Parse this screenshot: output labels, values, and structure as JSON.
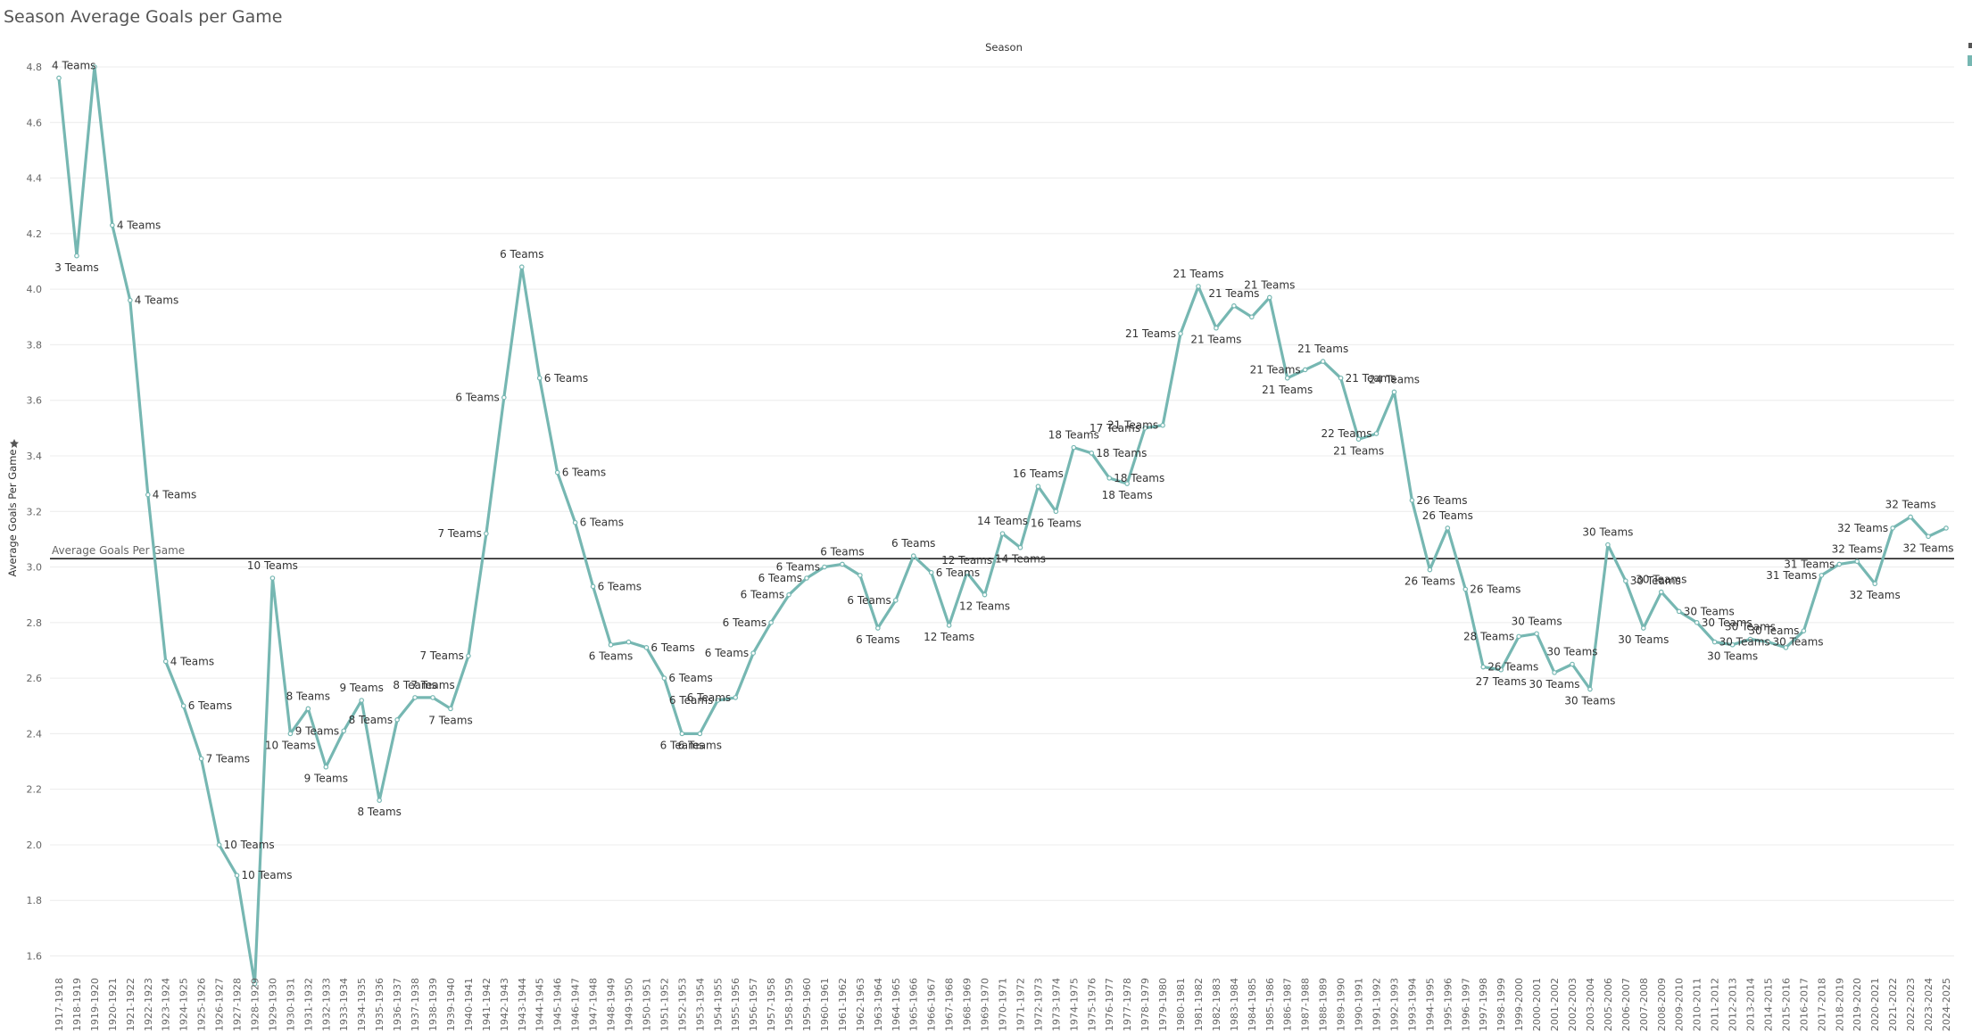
{
  "page": {
    "title": "Season Average Goals per Game"
  },
  "colors": {
    "line": "#76b7b2",
    "reference_line": "#222222",
    "gridline": "#ececec",
    "axis_text": "#666666"
  },
  "icons": {
    "y_axis_sort": "sort-icon"
  },
  "chart_data": {
    "type": "line",
    "title": "Season Average Goals per Game",
    "column_header": "Season",
    "xlabel": "",
    "ylabel": "Average Goals Per Game",
    "ylim": [
      1.5,
      4.85
    ],
    "yticks": [
      1.6,
      1.8,
      2.0,
      2.2,
      2.4,
      2.6,
      2.8,
      3.0,
      3.2,
      3.4,
      3.6,
      3.8,
      4.0,
      4.2,
      4.4,
      4.6,
      4.8
    ],
    "grid": true,
    "reference_line": {
      "label": "Average Goals Per Game",
      "value": 3.03
    },
    "categories": [
      "1917-1918",
      "1918-1919",
      "1919-1920",
      "1920-1921",
      "1921-1922",
      "1922-1923",
      "1923-1924",
      "1924-1925",
      "1925-1926",
      "1926-1927",
      "1927-1928",
      "1928-1929",
      "1929-1930",
      "1930-1931",
      "1931-1932",
      "1932-1933",
      "1933-1934",
      "1934-1935",
      "1935-1936",
      "1936-1937",
      "1937-1938",
      "1938-1939",
      "1939-1940",
      "1940-1941",
      "1941-1942",
      "1942-1943",
      "1943-1944",
      "1944-1945",
      "1945-1946",
      "1946-1947",
      "1947-1948",
      "1948-1949",
      "1949-1950",
      "1950-1951",
      "1951-1952",
      "1952-1953",
      "1953-1954",
      "1954-1955",
      "1955-1956",
      "1956-1957",
      "1957-1958",
      "1958-1959",
      "1959-1960",
      "1960-1961",
      "1961-1962",
      "1962-1963",
      "1963-1964",
      "1964-1965",
      "1965-1966",
      "1966-1967",
      "1967-1968",
      "1968-1969",
      "1969-1970",
      "1970-1971",
      "1971-1972",
      "1972-1973",
      "1973-1974",
      "1974-1975",
      "1975-1976",
      "1976-1977",
      "1977-1978",
      "1978-1979",
      "1979-1980",
      "1980-1981",
      "1981-1982",
      "1982-1983",
      "1983-1984",
      "1984-1985",
      "1985-1986",
      "1986-1987",
      "1987-1988",
      "1988-1989",
      "1989-1990",
      "1990-1991",
      "1991-1992",
      "1992-1993",
      "1993-1994",
      "1994-1995",
      "1995-1996",
      "1996-1997",
      "1997-1998",
      "1998-1999",
      "1999-2000",
      "2000-2001",
      "2001-2002",
      "2002-2003",
      "2003-2004",
      "2005-2006",
      "2006-2007",
      "2007-2008",
      "2008-2009",
      "2009-2010",
      "2010-2011",
      "2011-2012",
      "2012-2013",
      "2013-2014",
      "2014-2015",
      "2015-2016",
      "2016-2017",
      "2017-2018",
      "2018-2019",
      "2019-2020",
      "2020-2021",
      "2021-2022",
      "2022-2023",
      "2023-2024",
      "2024-2025"
    ],
    "series": [
      {
        "values": [
          4.76,
          4.12,
          4.8,
          4.23,
          3.96,
          3.26,
          2.66,
          2.5,
          2.31,
          2.0,
          1.89,
          1.5,
          2.96,
          2.4,
          2.49,
          2.28,
          2.41,
          2.52,
          2.16,
          2.45,
          2.53,
          2.53,
          2.49,
          2.68,
          3.12,
          3.61,
          4.08,
          3.68,
          3.34,
          3.16,
          2.93,
          2.72,
          2.73,
          2.71,
          2.6,
          2.4,
          2.4,
          2.52,
          2.53,
          2.69,
          2.8,
          2.9,
          2.96,
          3.0,
          3.01,
          2.97,
          2.78,
          2.88,
          3.04,
          2.98,
          2.79,
          2.98,
          2.9,
          3.12,
          3.07,
          3.29,
          3.2,
          3.43,
          3.41,
          3.32,
          3.3,
          3.5,
          3.51,
          3.84,
          4.01,
          3.86,
          3.94,
          3.9,
          3.97,
          3.68,
          3.71,
          3.74,
          3.68,
          3.46,
          3.48,
          3.63,
          3.24,
          2.99,
          3.14,
          2.92,
          2.64,
          2.63,
          2.75,
          2.76,
          2.62,
          2.65,
          2.56,
          3.08,
          2.95,
          2.78,
          2.91,
          2.84,
          2.8,
          2.73,
          2.72,
          2.74,
          2.73,
          2.71,
          2.77,
          2.97,
          3.01,
          3.02,
          2.94,
          3.14,
          3.18,
          3.11,
          3.14
        ]
      }
    ],
    "data_labels": [
      "4 Teams",
      "3 Teams",
      "",
      "4 Teams",
      "4 Teams",
      "4 Teams",
      "4 Teams",
      "6 Teams",
      "7 Teams",
      "10 Teams",
      "10 Teams",
      "",
      "10 Teams",
      "10 Teams",
      "8 Teams",
      "9 Teams",
      "9 Teams",
      "9 Teams",
      "8 Teams",
      "8 Teams",
      "8 Teams",
      "7 Teams",
      "7 Teams",
      "7 Teams",
      "7 Teams",
      "6 Teams",
      "6 Teams",
      "6 Teams",
      "6 Teams",
      "6 Teams",
      "6 Teams",
      "6 Teams",
      "",
      "6 Teams",
      "6 Teams",
      "6 Teams",
      "6 Teams",
      "6 Teams",
      "6 Teams",
      "6 Teams",
      "6 Teams",
      "6 Teams",
      "6 Teams",
      "6 Teams",
      "6 Teams",
      "",
      "6 Teams",
      "6 Teams",
      "6 Teams",
      "6 Teams",
      "12 Teams",
      "12 Teams",
      "12 Teams",
      "14 Teams",
      "14 Teams",
      "16 Teams",
      "16 Teams",
      "18 Teams",
      "18 Teams",
      "18 Teams",
      "18 Teams",
      "17 Teams",
      "21 Teams",
      "21 Teams",
      "21 Teams",
      "21 Teams",
      "21 Teams",
      "",
      "21 Teams",
      "21 Teams",
      "21 Teams",
      "21 Teams",
      "21 Teams",
      "21 Teams",
      "22 Teams",
      "24 Teams",
      "26 Teams",
      "26 Teams",
      "26 Teams",
      "26 Teams",
      "26 Teams",
      "27 Teams",
      "28 Teams",
      "30 Teams",
      "30 Teams",
      "30 Teams",
      "30 Teams",
      "30 Teams",
      "30 Teams",
      "30 Teams",
      "30 Teams",
      "30 Teams",
      "30 Teams",
      "30 Teams",
      "30 Teams",
      "30 Teams",
      "30 Teams",
      "",
      "30 Teams",
      "31 Teams",
      "31 Teams",
      "32 Teams",
      "32 Teams",
      "32 Teams",
      "32 Teams",
      "32 Teams",
      ""
    ]
  }
}
